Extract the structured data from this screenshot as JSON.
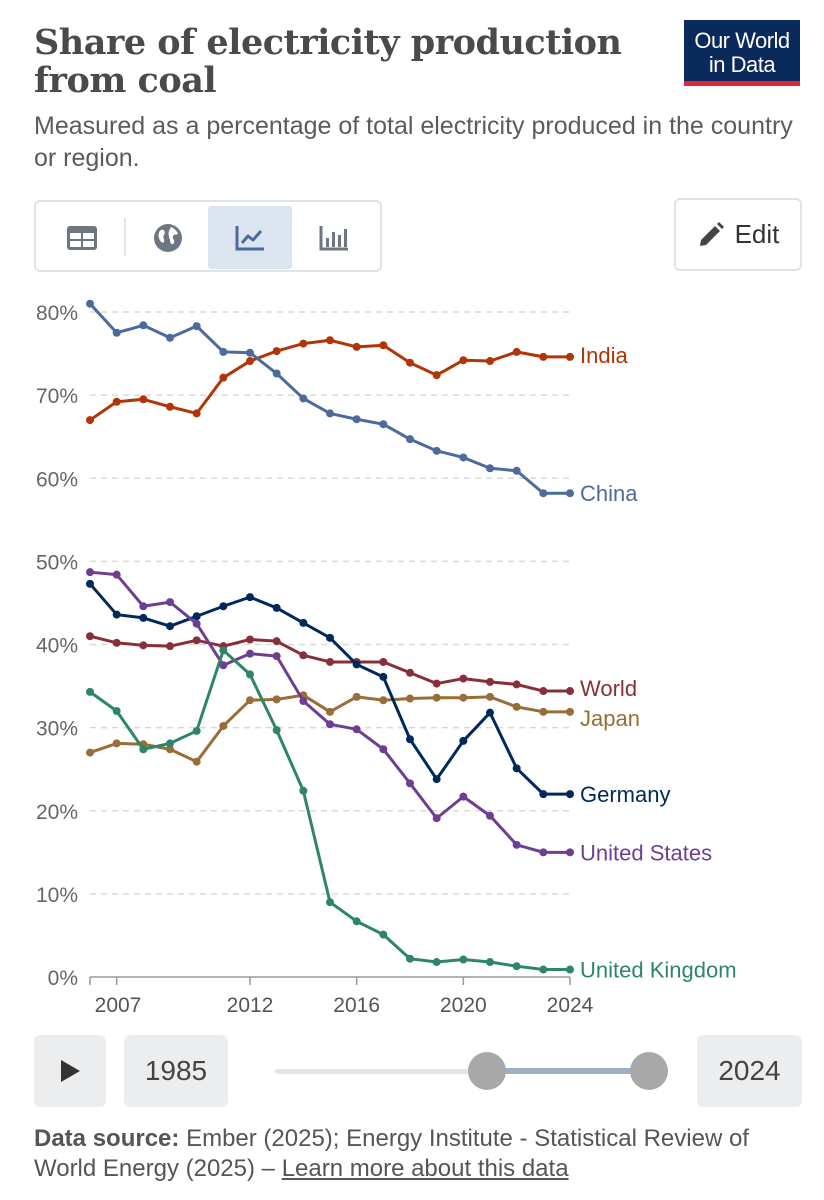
{
  "header": {
    "title_line1": "Share of electricity production",
    "title_line2": "from coal",
    "subtitle": "Measured as a percentage of total electricity produced in the country or region.",
    "logo_line1": "Our World",
    "logo_line2": "in Data"
  },
  "toolbar": {
    "tabs": [
      {
        "name": "table",
        "icon": "table-icon",
        "active": false
      },
      {
        "name": "map",
        "icon": "globe-icon",
        "active": false
      },
      {
        "name": "chart",
        "icon": "line-chart-icon",
        "active": true
      },
      {
        "name": "bar",
        "icon": "bar-chart-icon",
        "active": false
      }
    ],
    "edit_label": "Edit"
  },
  "chart_data": {
    "type": "line",
    "title": "Share of electricity production from coal",
    "xlabel": "",
    "ylabel": "",
    "ylim": [
      0,
      80
    ],
    "xlim": [
      2006,
      2024
    ],
    "yticks": [
      "0%",
      "10%",
      "20%",
      "30%",
      "40%",
      "50%",
      "60%",
      "70%",
      "80%"
    ],
    "xticks": [
      "2007",
      "2012",
      "2016",
      "2020",
      "2024"
    ],
    "x": [
      2006,
      2007,
      2008,
      2009,
      2010,
      2011,
      2012,
      2013,
      2014,
      2015,
      2016,
      2017,
      2018,
      2019,
      2020,
      2021,
      2022,
      2023,
      2024
    ],
    "series": [
      {
        "name": "India",
        "color": "#b13507",
        "values": [
          67,
          69.2,
          69.5,
          68.6,
          67.8,
          72.1,
          74.1,
          75.3,
          76.2,
          76.6,
          75.8,
          76,
          73.9,
          72.4,
          74.2,
          74.1,
          75.2,
          74.6,
          74.6
        ]
      },
      {
        "name": "China",
        "color": "#4c6a9c",
        "values": [
          81,
          77.5,
          78.4,
          76.9,
          78.3,
          75.2,
          75.1,
          72.6,
          69.6,
          67.8,
          67.1,
          66.5,
          64.7,
          63.3,
          62.5,
          61.2,
          60.9,
          58.2,
          58.2
        ]
      },
      {
        "name": "World",
        "color": "#883039",
        "values": [
          41,
          40.2,
          39.9,
          39.8,
          40.5,
          39.8,
          40.6,
          40.4,
          38.7,
          37.9,
          37.9,
          37.9,
          36.6,
          35.3,
          35.9,
          35.5,
          35.2,
          34.4,
          34.4
        ]
      },
      {
        "name": "Japan",
        "color": "#996d39",
        "values": [
          27,
          28.1,
          28,
          27.4,
          25.9,
          30.2,
          33.3,
          33.4,
          33.9,
          31.9,
          33.7,
          33.3,
          33.5,
          33.6,
          33.6,
          33.7,
          32.5,
          31.9,
          31.9
        ]
      },
      {
        "name": "Germany",
        "color": "#00295b",
        "values": [
          47.3,
          43.6,
          43.2,
          42.2,
          43.4,
          44.6,
          45.7,
          44.4,
          42.6,
          40.8,
          37.6,
          36.1,
          28.6,
          23.8,
          28.4,
          31.8,
          25.1,
          22,
          22
        ]
      },
      {
        "name": "United States",
        "color": "#6d3e91",
        "values": [
          48.7,
          48.4,
          44.6,
          45.1,
          42.5,
          37.5,
          38.9,
          38.6,
          33.2,
          30.4,
          29.8,
          27.4,
          23.3,
          19.1,
          21.7,
          19.4,
          15.9,
          15,
          15
        ]
      },
      {
        "name": "United Kingdom",
        "color": "#2d8665",
        "values": [
          34.3,
          32,
          27.4,
          28.1,
          29.6,
          39.3,
          36.4,
          29.7,
          22.4,
          9,
          6.7,
          5.1,
          2.2,
          1.8,
          2.1,
          1.8,
          1.3,
          0.9,
          0.9
        ]
      }
    ]
  },
  "timeline": {
    "start_year": "1985",
    "end_year": "2024"
  },
  "source": {
    "label": "Data source:",
    "text": "Ember (2025); Energy Institute - Statistical Review of World Energy (2025) –",
    "link": "Learn more about this data"
  }
}
